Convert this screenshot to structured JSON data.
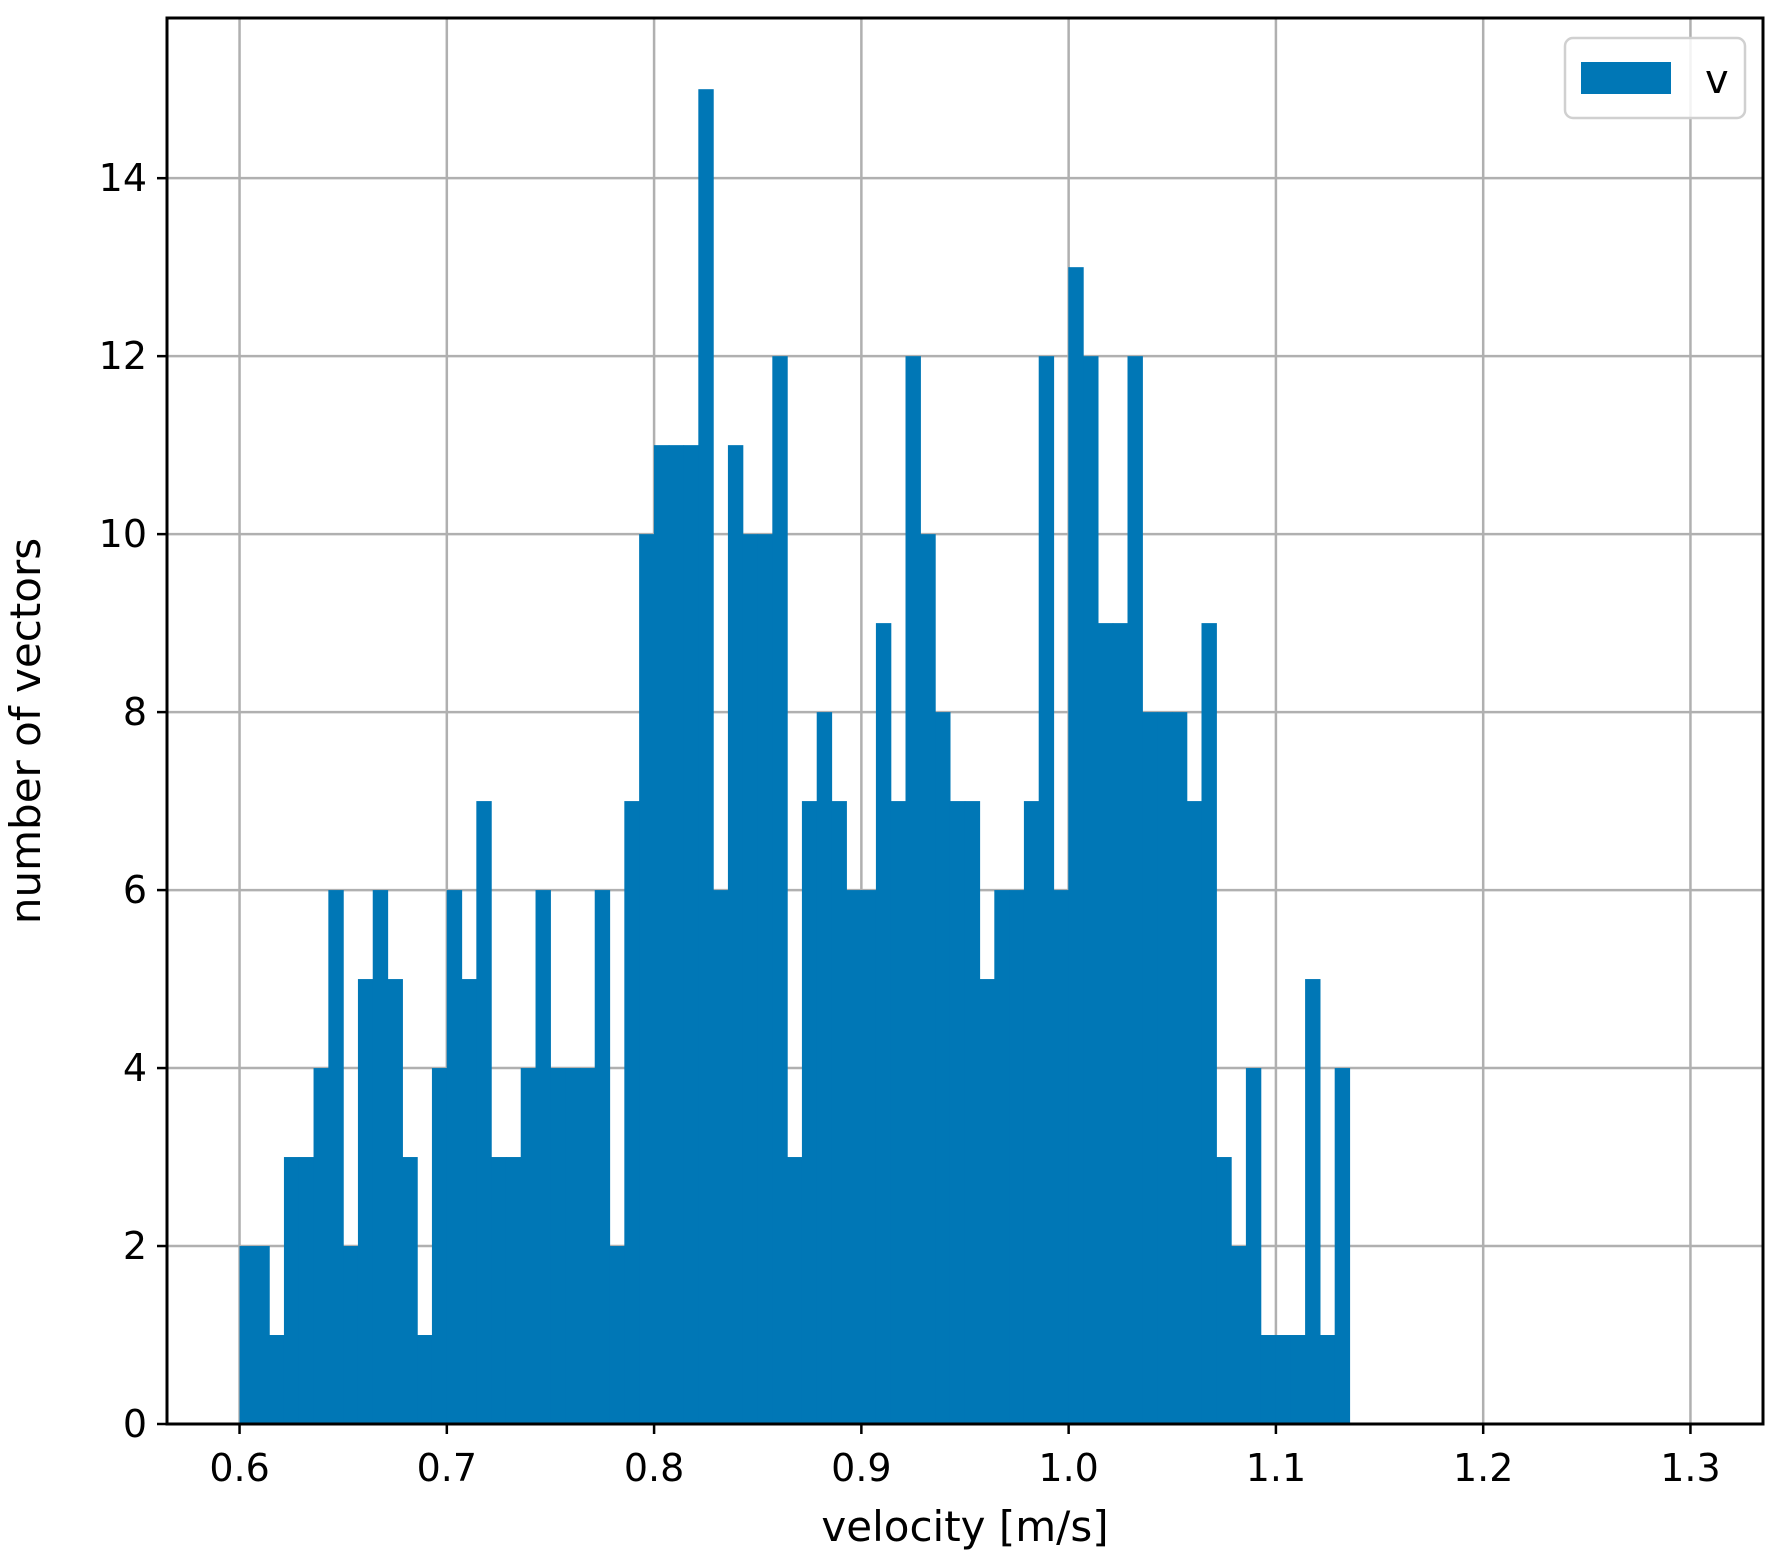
{
  "chart_data": {
    "type": "bar",
    "title": "",
    "xlabel": "velocity [m/s]",
    "ylabel": "number of vectors",
    "xlim": [
      0.565,
      1.335
    ],
    "ylim": [
      0,
      15.8
    ],
    "xticks": [
      0.6,
      0.7,
      0.8,
      0.9,
      1.0,
      1.1,
      1.2,
      1.3
    ],
    "xtick_labels": [
      "0.6",
      "0.7",
      "0.8",
      "0.9",
      "1.0",
      "1.1",
      "1.2",
      "1.3"
    ],
    "yticks": [
      0,
      2,
      4,
      6,
      8,
      10,
      12,
      14
    ],
    "ytick_labels": [
      "0",
      "2",
      "4",
      "6",
      "8",
      "10",
      "12",
      "14"
    ],
    "grid": true,
    "legend": {
      "position": "top-right",
      "entries": [
        "v"
      ]
    },
    "color": "#0077b6",
    "bin_start": 0.6,
    "bin_width": 0.00714,
    "series": [
      {
        "name": "v",
        "values": [
          2,
          2,
          1,
          3,
          3,
          4,
          6,
          2,
          5,
          6,
          5,
          3,
          1,
          4,
          6,
          5,
          7,
          3,
          3,
          4,
          6,
          4,
          4,
          4,
          6,
          2,
          7,
          10,
          11,
          11,
          11,
          15,
          6,
          11,
          10,
          10,
          12,
          3,
          7,
          8,
          7,
          6,
          6,
          9,
          7,
          12,
          10,
          8,
          7,
          7,
          5,
          6,
          6,
          7,
          12,
          6,
          13,
          12,
          9,
          9,
          12,
          8,
          8,
          8,
          7,
          9,
          3,
          2,
          4,
          1,
          1,
          1,
          5,
          1,
          4
        ]
      }
    ]
  }
}
